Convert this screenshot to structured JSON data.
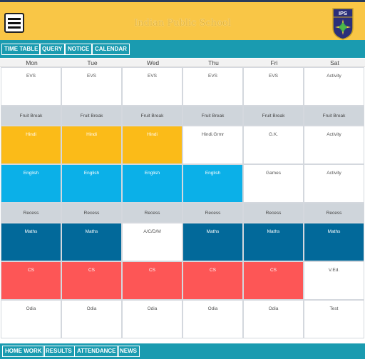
{
  "app": {
    "title": "Indian Public School",
    "logo_text": "IPS"
  },
  "top_nav": [
    "TIME TABLE",
    "QUERY",
    "NOTICE",
    "CALENDAR"
  ],
  "bottom_nav": [
    "HOME WORK",
    "RESULTS",
    "ATTENDANCE",
    "NEWS"
  ],
  "days": [
    "Mon",
    "Tue",
    "Wed",
    "Thu",
    "Fri",
    "Sat"
  ],
  "colors": {
    "header": "#f9c646",
    "nav": "#1a9bb0",
    "break": "#cfd5db",
    "hindi": "#fbbb18",
    "english": "#0bb0e8",
    "maths": "#02699a",
    "cs": "#fd5656"
  },
  "periods": [
    {
      "cells": [
        {
          "subject": "EVS",
          "style": "white"
        },
        {
          "subject": "EVS",
          "style": "white"
        },
        {
          "subject": "EVS",
          "style": "white"
        },
        {
          "subject": "EVS",
          "style": "white"
        },
        {
          "subject": "EVS",
          "style": "white"
        },
        {
          "subject": "Activity",
          "style": "white"
        }
      ]
    },
    {
      "cells": [
        {
          "subject": "Fruit Break",
          "style": "gray"
        },
        {
          "subject": "Fruit Break",
          "style": "gray"
        },
        {
          "subject": "Fruit Break",
          "style": "gray"
        },
        {
          "subject": "Fruit Break",
          "style": "gray"
        },
        {
          "subject": "Fruit Break",
          "style": "gray"
        },
        {
          "subject": "Fruit Break",
          "style": "gray"
        }
      ]
    },
    {
      "cells": [
        {
          "subject": "Hindi",
          "style": "yellow"
        },
        {
          "subject": "Hindi",
          "style": "yellow"
        },
        {
          "subject": "Hindi",
          "style": "yellow"
        },
        {
          "subject": "Hindi.Grmr",
          "style": "white"
        },
        {
          "subject": "G.K.",
          "style": "white"
        },
        {
          "subject": "Activity",
          "style": "white"
        }
      ]
    },
    {
      "cells": [
        {
          "subject": "English",
          "style": "sky"
        },
        {
          "subject": "English",
          "style": "sky"
        },
        {
          "subject": "English",
          "style": "sky"
        },
        {
          "subject": "English",
          "style": "sky"
        },
        {
          "subject": "Games",
          "style": "white"
        },
        {
          "subject": "Activity",
          "style": "white"
        }
      ]
    },
    {
      "cells": [
        {
          "subject": "Recess",
          "style": "gray"
        },
        {
          "subject": "Recess",
          "style": "gray"
        },
        {
          "subject": "Recess",
          "style": "gray"
        },
        {
          "subject": "Recess",
          "style": "gray"
        },
        {
          "subject": "Recess",
          "style": "gray"
        },
        {
          "subject": "Recess",
          "style": "gray"
        }
      ]
    },
    {
      "cells": [
        {
          "subject": "Maths",
          "style": "navy"
        },
        {
          "subject": "Maths",
          "style": "navy"
        },
        {
          "subject": "A/C/D/M",
          "style": "white"
        },
        {
          "subject": "Maths",
          "style": "navy"
        },
        {
          "subject": "Maths",
          "style": "navy"
        },
        {
          "subject": "Maths",
          "style": "navy"
        }
      ]
    },
    {
      "cells": [
        {
          "subject": "CS",
          "style": "red"
        },
        {
          "subject": "CS",
          "style": "red"
        },
        {
          "subject": "CS",
          "style": "red"
        },
        {
          "subject": "CS",
          "style": "red"
        },
        {
          "subject": "CS",
          "style": "red"
        },
        {
          "subject": "V.Ed.",
          "style": "white"
        }
      ]
    },
    {
      "cells": [
        {
          "subject": "Odia",
          "style": "white"
        },
        {
          "subject": "Odia",
          "style": "white"
        },
        {
          "subject": "Odia",
          "style": "white"
        },
        {
          "subject": "Odia",
          "style": "white"
        },
        {
          "subject": "Odia",
          "style": "white"
        },
        {
          "subject": "Test",
          "style": "white"
        }
      ]
    }
  ]
}
